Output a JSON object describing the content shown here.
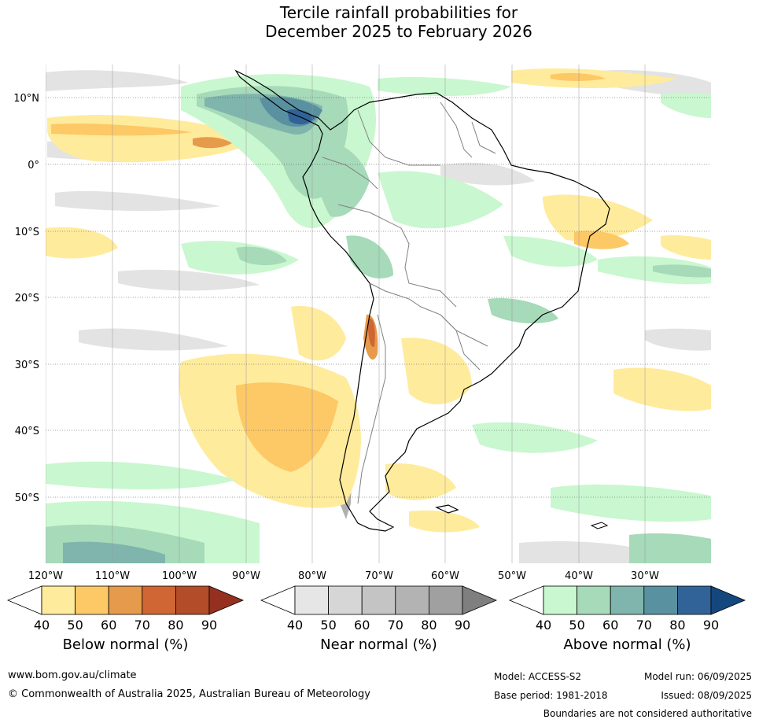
{
  "title": {
    "line1": "Tercile rainfall probabilities for",
    "line2": "December 2025 to February 2026"
  },
  "map": {
    "latitude_labels": [
      "10°N",
      "0°",
      "10°S",
      "20°S",
      "30°S",
      "40°S",
      "50°S"
    ],
    "longitude_labels": [
      "120°W",
      "110°W",
      "100°W",
      "90°W",
      "80°W",
      "70°W",
      "60°W",
      "50°W",
      "40°W",
      "30°W"
    ],
    "ocean_color": "#ffffff",
    "coast_color": "#000000",
    "border_color": "#808080"
  },
  "legends": [
    {
      "title": "Below normal (%)",
      "ticks": [
        "40",
        "50",
        "60",
        "70",
        "80",
        "90"
      ],
      "colors": [
        "#ffffff",
        "#ffeb9c",
        "#fdc866",
        "#e69a4b",
        "#cf6633",
        "#b34c28",
        "#953021"
      ]
    },
    {
      "title": "Near normal (%)",
      "ticks": [
        "40",
        "50",
        "60",
        "70",
        "80",
        "90"
      ],
      "colors": [
        "#ffffff",
        "#e6e6e6",
        "#d6d6d6",
        "#c4c4c4",
        "#b3b3b3",
        "#a0a0a0",
        "#7f7f7f"
      ]
    },
    {
      "title": "Above normal (%)",
      "ticks": [
        "40",
        "50",
        "60",
        "70",
        "80",
        "90"
      ],
      "colors": [
        "#ffffff",
        "#c9f7cf",
        "#a6dab9",
        "#7fb5ac",
        "#5a91a0",
        "#316398",
        "#15477f"
      ]
    }
  ],
  "footer": {
    "website": "www.bom.gov.au/climate",
    "copyright": "© Commonwealth of Australia 2025, Australian Bureau of Meteorology",
    "model": "Model: ACCESS-S2",
    "model_run": "Model run: 06/09/2025",
    "base_period": "Base period: 1981-2018",
    "issued": "Issued: 08/09/2025",
    "disclaimer": "Boundaries are not considered authoritative"
  }
}
